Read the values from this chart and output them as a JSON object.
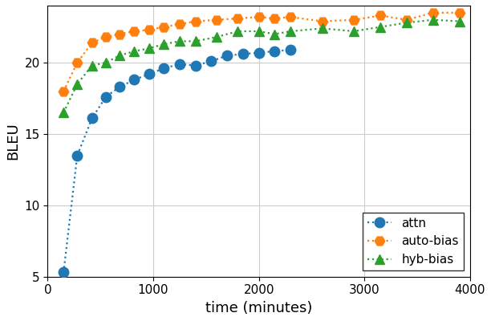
{
  "attn_x": [
    150,
    280,
    420,
    550,
    680,
    820,
    960,
    1100,
    1250,
    1400,
    1550,
    1700,
    1850,
    2000,
    2150,
    2300
  ],
  "attn_y": [
    5.3,
    13.5,
    16.1,
    17.6,
    18.3,
    18.8,
    19.2,
    19.6,
    19.9,
    19.8,
    20.1,
    20.5,
    20.6,
    20.7,
    20.8,
    20.9
  ],
  "auto_bias_x": [
    150,
    280,
    420,
    550,
    680,
    820,
    960,
    1100,
    1250,
    1400,
    1600,
    1800,
    2000,
    2150,
    2300,
    2600,
    2900,
    3150,
    3400,
    3650,
    3900
  ],
  "auto_bias_y": [
    18.0,
    20.0,
    21.4,
    21.8,
    22.0,
    22.2,
    22.3,
    22.5,
    22.7,
    22.9,
    23.0,
    23.1,
    23.2,
    23.1,
    23.2,
    22.9,
    23.0,
    23.3,
    23.0,
    23.5,
    23.5
  ],
  "hyb_bias_x": [
    150,
    280,
    420,
    550,
    680,
    820,
    960,
    1100,
    1250,
    1400,
    1600,
    1800,
    2000,
    2150,
    2300,
    2600,
    2900,
    3150,
    3400,
    3650,
    3900
  ],
  "hyb_bias_y": [
    16.5,
    18.5,
    19.8,
    20.0,
    20.5,
    20.8,
    21.0,
    21.3,
    21.5,
    21.5,
    21.8,
    22.2,
    22.2,
    22.0,
    22.2,
    22.4,
    22.2,
    22.5,
    22.8,
    23.0,
    22.9
  ],
  "attn_color": "#1f77b4",
  "auto_bias_color": "#ff7f0e",
  "hyb_bias_color": "#2ca02c",
  "xlabel": "time (minutes)",
  "ylabel": "BLEU",
  "xlim": [
    0,
    4000
  ],
  "ylim": [
    5,
    24
  ],
  "yticks": [
    5,
    10,
    15,
    20
  ],
  "xticks": [
    0,
    1000,
    2000,
    3000,
    4000
  ],
  "legend_labels": [
    "attn",
    "auto-bias",
    "hyb-bias"
  ],
  "marker_size_circle": 9,
  "marker_size_hex": 9,
  "marker_size_triangle": 9,
  "linewidth": 1.6,
  "background_color": "#ffffff"
}
